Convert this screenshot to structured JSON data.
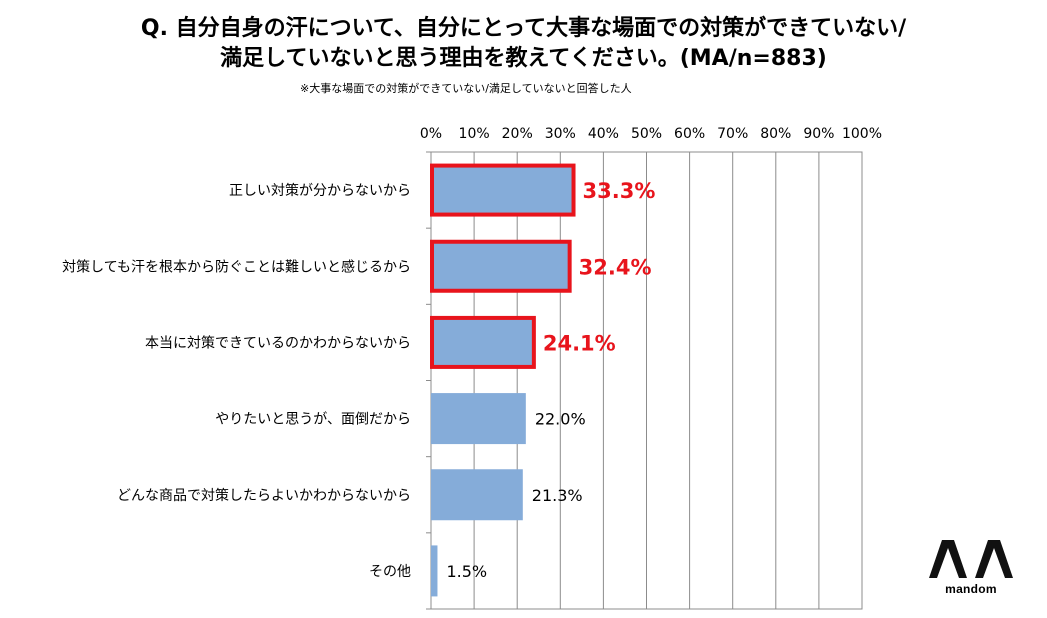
{
  "title_line1": "Q. 自分自身の汗について、自分にとって大事な場面での対策ができていない/",
  "title_line2": "満足していないと思う理由を教えてください。(MA/n=883)",
  "subtitle": "※大事な場面での対策ができていない/満足していないと回答した人",
  "logo_name": "mandom",
  "colors": {
    "bar": "#85acd9",
    "highlight": "#e8141c",
    "grid": "#8c8c8c"
  },
  "chart_data": {
    "type": "bar",
    "orientation": "horizontal",
    "categories": [
      "正しい対策が分からないから",
      "対策しても汗を根本から防ぐことは難しいと感じるから",
      "本当に対策できているのかわからないから",
      "やりたいと思うが、面倒だから",
      "どんな商品で対策したらよいかわからないから",
      "その他"
    ],
    "values": [
      33.3,
      32.4,
      24.1,
      22.0,
      21.3,
      1.5
    ],
    "value_labels": [
      "33.3%",
      "32.4%",
      "24.1%",
      "22.0%",
      "21.3%",
      "1.5%"
    ],
    "highlighted": [
      true,
      true,
      true,
      false,
      false,
      false
    ],
    "xlim": [
      0,
      100
    ],
    "ticks": [
      0,
      10,
      20,
      30,
      40,
      50,
      60,
      70,
      80,
      90,
      100
    ],
    "tick_labels": [
      "0%",
      "10%",
      "20%",
      "30%",
      "40%",
      "50%",
      "60%",
      "70%",
      "80%",
      "90%",
      "100%"
    ],
    "grid": true,
    "axis_position": "top"
  }
}
